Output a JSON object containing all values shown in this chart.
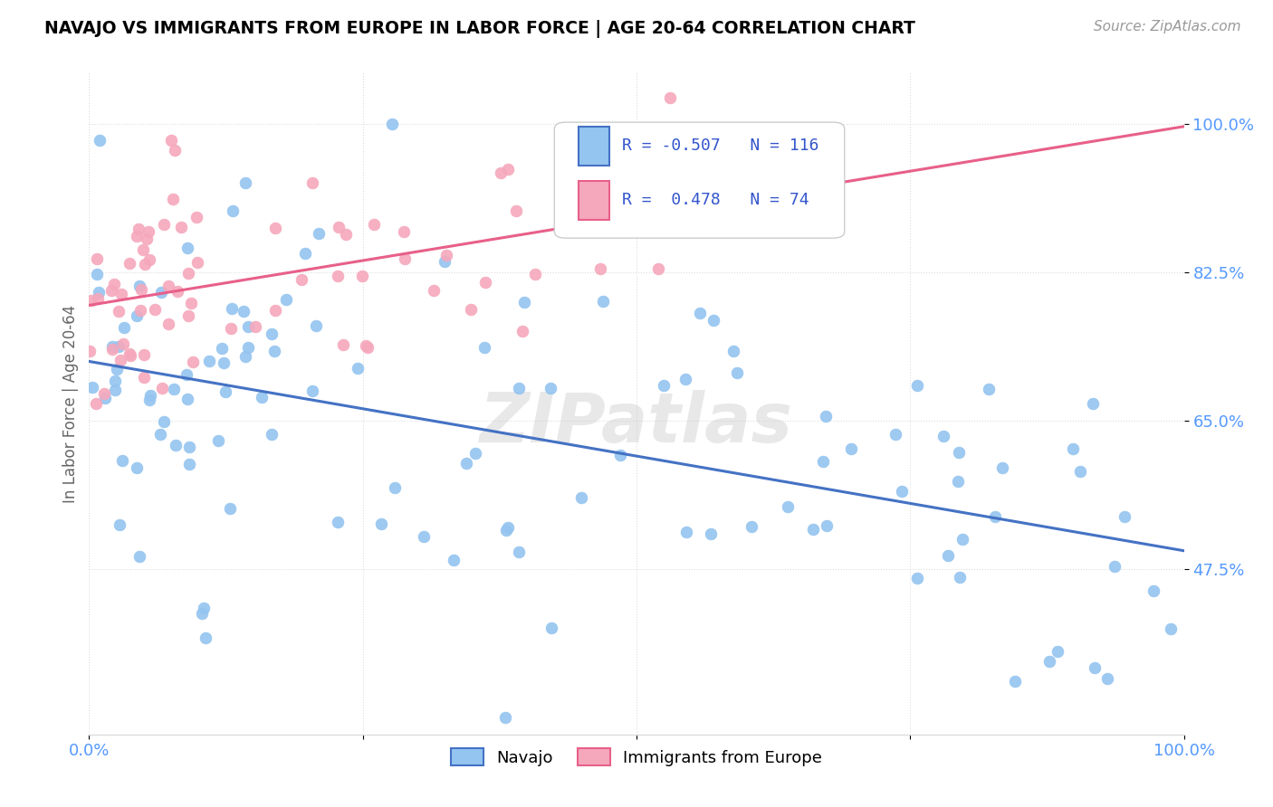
{
  "title": "NAVAJO VS IMMIGRANTS FROM EUROPE IN LABOR FORCE | AGE 20-64 CORRELATION CHART",
  "source": "Source: ZipAtlas.com",
  "ylabel": "In Labor Force | Age 20-64",
  "xlim": [
    0.0,
    1.0
  ],
  "ylim": [
    0.28,
    1.06
  ],
  "xtick_vals": [
    0.0,
    0.25,
    0.5,
    0.75,
    1.0
  ],
  "xtick_labels": [
    "0.0%",
    "",
    "",
    "",
    "100.0%"
  ],
  "ytick_values": [
    0.475,
    0.65,
    0.825,
    1.0
  ],
  "ytick_labels": [
    "47.5%",
    "65.0%",
    "82.5%",
    "100.0%"
  ],
  "navajo_R": -0.507,
  "navajo_N": 116,
  "europe_R": 0.478,
  "europe_N": 74,
  "navajo_color": "#94C4F0",
  "navajo_edge_color": "#94C4F0",
  "europe_color": "#F5A8BC",
  "europe_edge_color": "#F5A8BC",
  "navajo_line_color": "#4472C4",
  "europe_line_color": "#E8608A",
  "background_color": "#FFFFFF",
  "watermark": "ZIPatlas",
  "grid_color": "#DDDDDD",
  "tick_color": "#5599FF",
  "ylabel_color": "#666666",
  "title_color": "#000000",
  "source_color": "#999999",
  "legend_text_color": "#3355CC"
}
